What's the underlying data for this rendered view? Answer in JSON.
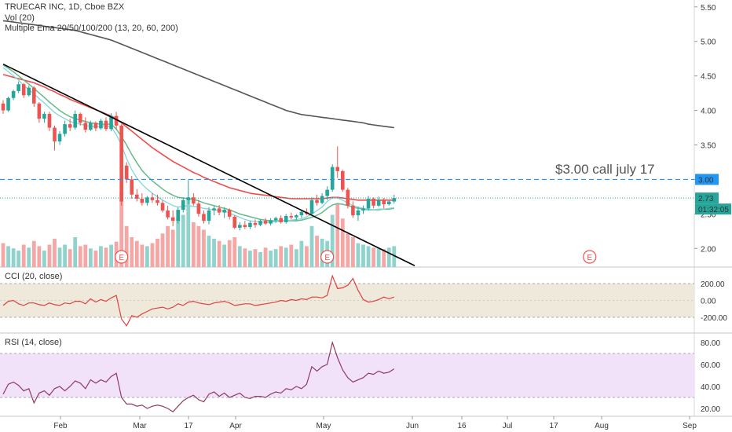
{
  "header": {
    "title": "TRUECAR INC, 1D, Cboe BZX",
    "vol_label": "Vol (20)",
    "ema_label": "Multiple Ema 20/50/100/200 (13, 20, 60, 200)"
  },
  "annotation": "$3.00   call july 17",
  "colors": {
    "up": "#26a69a",
    "down": "#ef5350",
    "vol_up": "#8fd3cc",
    "vol_down": "#f4a7a5",
    "ema13": "#7fd7e0",
    "ema20": "#66bb88",
    "ema60": "#ef4c4c",
    "ema200": "#555555",
    "trendline": "#000000",
    "hline": "#2196f3",
    "cci_line": "#e0413e",
    "cci_band": "#efe9dc",
    "rsi_line": "#8e3b62",
    "rsi_band": "#f1e2fa"
  },
  "price_axis": {
    "ticks": [
      "5.50",
      "5.00",
      "4.50",
      "4.00",
      "3.50",
      "3.00",
      "2.50",
      "2.00"
    ],
    "hline_label": "3.00",
    "last_price": "2.73",
    "countdown": "01:32:05"
  },
  "cci_axis": {
    "title": "CCI (20, close)",
    "ticks": [
      "200.00",
      "0.00",
      "-200.00"
    ]
  },
  "rsi_axis": {
    "title": "RSI (14, close)",
    "ticks": [
      "80.00",
      "60.00",
      "40.00",
      "20.00"
    ]
  },
  "x_axis": {
    "labels": [
      "Feb",
      "Mar",
      "17",
      "Apr",
      "May",
      "Jun",
      "16",
      "Jul",
      "17",
      "Aug",
      "Sep"
    ]
  },
  "earnings_marker": "E",
  "chart_data": {
    "type": "candlestick",
    "title": "TRUECAR INC, 1D, Cboe BZX",
    "ylim": [
      1.73,
      5.6
    ],
    "hline": 3.0,
    "trendline": {
      "from": [
        0,
        4.67
      ],
      "to": [
        80,
        1.75
      ]
    },
    "candles": [
      [
        4.1,
        4.15,
        3.95,
        4.0
      ],
      [
        4.0,
        4.2,
        3.98,
        4.18
      ],
      [
        4.18,
        4.3,
        4.15,
        4.28
      ],
      [
        4.28,
        4.42,
        4.25,
        4.38
      ],
      [
        4.38,
        4.4,
        4.18,
        4.22
      ],
      [
        4.22,
        4.36,
        4.2,
        4.33
      ],
      [
        4.33,
        4.35,
        4.05,
        4.1
      ],
      [
        4.1,
        4.12,
        3.82,
        3.88
      ],
      [
        3.88,
        3.98,
        3.82,
        3.95
      ],
      [
        3.95,
        3.98,
        3.7,
        3.75
      ],
      [
        3.75,
        3.78,
        3.42,
        3.55
      ],
      [
        3.55,
        3.7,
        3.5,
        3.66
      ],
      [
        3.66,
        3.85,
        3.62,
        3.8
      ],
      [
        3.8,
        3.88,
        3.7,
        3.75
      ],
      [
        3.75,
        4.0,
        3.72,
        3.95
      ],
      [
        3.95,
        3.97,
        3.78,
        3.82
      ],
      [
        3.82,
        3.9,
        3.68,
        3.72
      ],
      [
        3.72,
        3.85,
        3.7,
        3.82
      ],
      [
        3.82,
        3.84,
        3.7,
        3.74
      ],
      [
        3.74,
        3.88,
        3.72,
        3.85
      ],
      [
        3.85,
        3.9,
        3.7,
        3.73
      ],
      [
        3.73,
        3.96,
        3.7,
        3.92
      ],
      [
        3.92,
        3.98,
        3.72,
        3.78
      ],
      [
        3.78,
        3.8,
        2.62,
        2.68
      ],
      [
        3.2,
        3.25,
        2.95,
        3.0
      ],
      [
        3.0,
        3.05,
        2.72,
        2.78
      ],
      [
        2.78,
        2.86,
        2.68,
        2.72
      ],
      [
        2.72,
        2.8,
        2.62,
        2.66
      ],
      [
        2.66,
        2.76,
        2.62,
        2.74
      ],
      [
        2.74,
        2.8,
        2.66,
        2.7
      ],
      [
        2.7,
        2.78,
        2.62,
        2.66
      ],
      [
        2.66,
        2.7,
        2.52,
        2.55
      ],
      [
        2.55,
        2.62,
        2.42,
        2.45
      ],
      [
        2.45,
        2.55,
        2.32,
        2.4
      ],
      [
        2.4,
        2.6,
        2.36,
        2.56
      ],
      [
        2.56,
        2.74,
        2.52,
        2.7
      ],
      [
        2.7,
        3.0,
        2.64,
        2.74
      ],
      [
        2.74,
        2.8,
        2.62,
        2.65
      ],
      [
        2.65,
        2.7,
        2.46,
        2.5
      ],
      [
        2.5,
        2.55,
        2.36,
        2.4
      ],
      [
        2.4,
        2.6,
        2.35,
        2.55
      ],
      [
        2.55,
        2.62,
        2.48,
        2.58
      ],
      [
        2.58,
        2.63,
        2.48,
        2.52
      ],
      [
        2.52,
        2.6,
        2.44,
        2.56
      ],
      [
        2.56,
        2.58,
        2.42,
        2.46
      ],
      [
        2.46,
        2.48,
        2.28,
        2.3
      ],
      [
        2.3,
        2.38,
        2.26,
        2.34
      ],
      [
        2.34,
        2.4,
        2.28,
        2.31
      ],
      [
        2.31,
        2.4,
        2.28,
        2.37
      ],
      [
        2.37,
        2.42,
        2.3,
        2.34
      ],
      [
        2.34,
        2.42,
        2.32,
        2.4
      ],
      [
        2.4,
        2.44,
        2.34,
        2.36
      ],
      [
        2.36,
        2.44,
        2.33,
        2.41
      ],
      [
        2.41,
        2.46,
        2.37,
        2.44
      ],
      [
        2.44,
        2.48,
        2.36,
        2.38
      ],
      [
        2.38,
        2.5,
        2.36,
        2.47
      ],
      [
        2.47,
        2.52,
        2.42,
        2.45
      ],
      [
        2.45,
        2.5,
        2.4,
        2.48
      ],
      [
        2.48,
        2.56,
        2.44,
        2.53
      ],
      [
        2.53,
        2.58,
        2.48,
        2.5
      ],
      [
        2.5,
        2.74,
        2.48,
        2.7
      ],
      [
        2.7,
        2.78,
        2.62,
        2.66
      ],
      [
        2.66,
        2.8,
        2.64,
        2.76
      ],
      [
        2.76,
        2.9,
        2.7,
        2.85
      ],
      [
        2.85,
        3.22,
        2.82,
        3.18
      ],
      [
        3.18,
        3.48,
        3.02,
        3.12
      ],
      [
        3.12,
        3.14,
        2.82,
        2.85
      ],
      [
        2.85,
        2.88,
        2.58,
        2.62
      ],
      [
        2.62,
        2.68,
        2.44,
        2.48
      ],
      [
        2.48,
        2.6,
        2.4,
        2.55
      ],
      [
        2.55,
        2.62,
        2.5,
        2.58
      ],
      [
        2.58,
        2.76,
        2.55,
        2.72
      ],
      [
        2.72,
        2.74,
        2.58,
        2.62
      ],
      [
        2.62,
        2.75,
        2.6,
        2.7
      ],
      [
        2.7,
        2.73,
        2.58,
        2.64
      ],
      [
        2.64,
        2.7,
        2.62,
        2.68
      ],
      [
        2.68,
        2.78,
        2.65,
        2.73
      ]
    ],
    "volume": [
      0.32,
      0.28,
      0.25,
      0.22,
      0.3,
      0.26,
      0.35,
      0.28,
      0.22,
      0.3,
      0.38,
      0.26,
      0.3,
      0.24,
      0.4,
      0.28,
      0.3,
      0.25,
      0.22,
      0.28,
      0.26,
      0.3,
      0.34,
      1.0,
      0.55,
      0.4,
      0.35,
      0.3,
      0.28,
      0.32,
      0.38,
      0.45,
      0.55,
      0.5,
      0.65,
      0.7,
      0.9,
      0.6,
      0.55,
      0.5,
      0.42,
      0.38,
      0.35,
      0.3,
      0.36,
      0.4,
      0.28,
      0.25,
      0.22,
      0.24,
      0.2,
      0.26,
      0.22,
      0.24,
      0.28,
      0.26,
      0.3,
      0.24,
      0.35,
      0.28,
      0.55,
      0.42,
      0.38,
      0.35,
      0.7,
      0.85,
      0.65,
      0.45,
      0.4,
      0.32,
      0.3,
      0.28,
      0.26,
      0.25,
      0.24,
      0.26,
      0.28
    ],
    "earnings": [
      23,
      63,
      114
    ],
    "cci": [
      -60,
      -10,
      0,
      -40,
      -60,
      -30,
      -30,
      -50,
      -60,
      -30,
      -50,
      -60,
      -30,
      -40,
      -10,
      -10,
      -40,
      20,
      -20,
      10,
      -10,
      30,
      60,
      -220,
      -300,
      -180,
      -200,
      -160,
      -130,
      -100,
      -90,
      -80,
      -100,
      -80,
      -40,
      -60,
      -20,
      -10,
      -30,
      -40,
      -50,
      -30,
      -20,
      -10,
      -30,
      -60,
      -50,
      -40,
      -40,
      -60,
      -50,
      -40,
      -30,
      -20,
      0,
      -10,
      10,
      0,
      20,
      10,
      40,
      40,
      30,
      60,
      290,
      140,
      150,
      180,
      260,
      120,
      10,
      -20,
      -10,
      10,
      40,
      20,
      40
    ],
    "rsi": [
      33,
      42,
      44,
      41,
      36,
      38,
      25,
      34,
      36,
      32,
      38,
      40,
      36,
      40,
      45,
      43,
      38,
      46,
      43,
      46,
      44,
      49,
      52,
      30,
      24,
      24,
      22,
      23,
      20,
      22,
      23,
      22,
      20,
      17,
      22,
      27,
      30,
      32,
      28,
      26,
      33,
      35,
      31,
      34,
      30,
      32,
      34,
      30,
      29,
      31,
      31,
      30,
      33,
      35,
      34,
      38,
      37,
      40,
      38,
      42,
      58,
      54,
      58,
      60,
      80,
      66,
      55,
      48,
      44,
      46,
      48,
      52,
      51,
      54,
      52,
      53,
      56
    ],
    "ema13": [
      4.62,
      4.56,
      4.5,
      4.44,
      4.36,
      4.3,
      4.24,
      4.17,
      4.11,
      4.04,
      3.97,
      3.92,
      3.88,
      3.84,
      3.82,
      3.8,
      3.78,
      3.77,
      3.76,
      3.77,
      3.78,
      3.76,
      3.65,
      3.5,
      3.3,
      3.14,
      3.02,
      2.93,
      2.86,
      2.8,
      2.75,
      2.7,
      2.66,
      2.62,
      2.6,
      2.61,
      2.62,
      2.61,
      2.6,
      2.58,
      2.57,
      2.56,
      2.55,
      2.54,
      2.51,
      2.48,
      2.45,
      2.42,
      2.4,
      2.39,
      2.38,
      2.38,
      2.38,
      2.39,
      2.39,
      2.4,
      2.41,
      2.42,
      2.43,
      2.46,
      2.5,
      2.55,
      2.6,
      2.68,
      2.73,
      2.73,
      2.7,
      2.66,
      2.62,
      2.6,
      2.58,
      2.57,
      2.56,
      2.57,
      2.57,
      2.58,
      2.59
    ],
    "ema20": [
      4.66,
      4.61,
      4.56,
      4.5,
      4.44,
      4.38,
      4.32,
      4.25,
      4.19,
      4.12,
      4.06,
      4.0,
      3.95,
      3.91,
      3.88,
      3.86,
      3.84,
      3.82,
      3.81,
      3.8,
      3.8,
      3.8,
      3.73,
      3.62,
      3.5,
      3.36,
      3.24,
      3.13,
      3.05,
      2.98,
      2.92,
      2.86,
      2.81,
      2.77,
      2.74,
      2.73,
      2.72,
      2.71,
      2.69,
      2.66,
      2.64,
      2.62,
      2.6,
      2.58,
      2.56,
      2.53,
      2.5,
      2.48,
      2.46,
      2.44,
      2.42,
      2.41,
      2.4,
      2.4,
      2.4,
      2.4,
      2.4,
      2.4,
      2.41,
      2.43,
      2.45,
      2.48,
      2.52,
      2.58,
      2.63,
      2.65,
      2.64,
      2.62,
      2.6,
      2.58,
      2.57,
      2.56,
      2.56,
      2.56,
      2.57,
      2.57,
      2.58
    ],
    "ema60": [
      4.52,
      4.5,
      4.48,
      4.46,
      4.44,
      4.42,
      4.4,
      4.37,
      4.34,
      4.3,
      4.27,
      4.23,
      4.2,
      4.16,
      4.13,
      4.1,
      4.07,
      4.04,
      4.01,
      3.98,
      3.95,
      3.92,
      3.88,
      3.82,
      3.76,
      3.7,
      3.64,
      3.58,
      3.52,
      3.46,
      3.41,
      3.36,
      3.31,
      3.26,
      3.22,
      3.18,
      3.14,
      3.1,
      3.07,
      3.03,
      3.0,
      2.97,
      2.94,
      2.91,
      2.88,
      2.86,
      2.84,
      2.82,
      2.8,
      2.79,
      2.78,
      2.77,
      2.76,
      2.75,
      2.74,
      2.73,
      2.72,
      2.72,
      2.72,
      2.72,
      2.72,
      2.72,
      2.72,
      2.73,
      2.74,
      2.74,
      2.73,
      2.72,
      2.71,
      2.7,
      2.7,
      2.7,
      2.7,
      2.7,
      2.7,
      2.7,
      2.7
    ],
    "ema200": [
      5.3,
      5.29,
      5.28,
      5.27,
      5.26,
      5.25,
      5.24,
      5.23,
      5.22,
      5.21,
      5.2,
      5.19,
      5.18,
      5.17,
      5.16,
      5.14,
      5.12,
      5.1,
      5.08,
      5.06,
      5.04,
      5.02,
      4.99,
      4.96,
      4.93,
      4.9,
      4.87,
      4.84,
      4.81,
      4.78,
      4.75,
      4.72,
      4.69,
      4.66,
      4.63,
      4.6,
      4.57,
      4.54,
      4.51,
      4.48,
      4.45,
      4.42,
      4.39,
      4.36,
      4.33,
      4.3,
      4.27,
      4.24,
      4.21,
      4.18,
      4.15,
      4.12,
      4.09,
      4.06,
      4.03,
      4.0,
      3.98,
      3.96,
      3.94,
      3.93,
      3.92,
      3.91,
      3.9,
      3.89,
      3.88,
      3.87,
      3.86,
      3.85,
      3.84,
      3.83,
      3.82,
      3.8,
      3.79,
      3.78,
      3.77,
      3.76,
      3.75
    ]
  }
}
